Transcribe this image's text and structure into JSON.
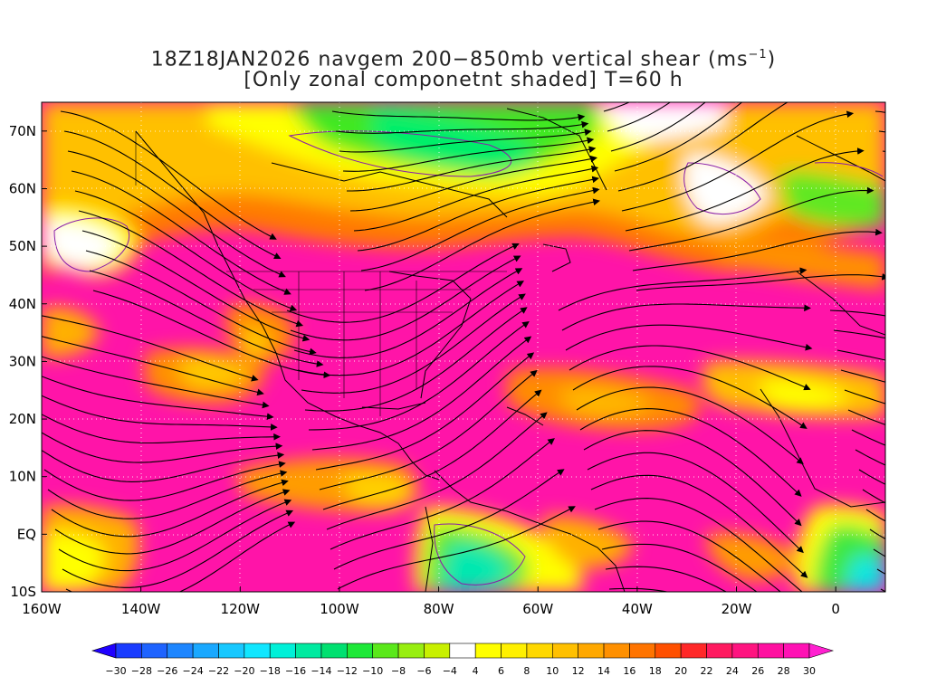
{
  "title": {
    "line1_prefix": "18Z18JAN2026 navgem 200−850mb vertical shear (ms",
    "line1_sup": "−1",
    "line1_suffix": ")",
    "line2": "[Only zonal componetnt shaded] T=60 h"
  },
  "axes": {
    "lat_labels": [
      "70N",
      "60N",
      "50N",
      "40N",
      "30N",
      "20N",
      "10N",
      "EQ",
      "10S"
    ],
    "lat_values": [
      70,
      60,
      50,
      40,
      30,
      20,
      10,
      0,
      -10
    ],
    "lon_labels": [
      "160W",
      "140W",
      "120W",
      "100W",
      "80W",
      "60W",
      "40W",
      "20W",
      "0"
    ],
    "lon_values": [
      -160,
      -140,
      -120,
      -100,
      -80,
      -60,
      -40,
      -20,
      0
    ],
    "lon_range": [
      -160,
      10
    ],
    "lat_range": [
      -10,
      75
    ],
    "grid": "dotted"
  },
  "colorbar": {
    "labels": [
      "−30",
      "−28",
      "−26",
      "−24",
      "−22",
      "−20",
      "−18",
      "−16",
      "−14",
      "−12",
      "−10",
      "−8",
      "−6",
      "−4",
      "4",
      "6",
      "8",
      "10",
      "12",
      "14",
      "16",
      "18",
      "20",
      "22",
      "24",
      "26",
      "28",
      "30"
    ],
    "colors": [
      "#1f00ff",
      "#1a3cff",
      "#1e63ff",
      "#1e86ff",
      "#19a8ff",
      "#17c8ff",
      "#10e6ff",
      "#00f0d8",
      "#00eaa0",
      "#00e070",
      "#1ee838",
      "#5ae81a",
      "#98ee10",
      "#c8f000",
      "#ffffff",
      "#ffff00",
      "#fff000",
      "#ffd800",
      "#ffc000",
      "#ffa800",
      "#ff9000",
      "#ff7400",
      "#ff5000",
      "#ff2828",
      "#ff1a60",
      "#ff1480",
      "#ff10a0",
      "#ff12b4",
      "#ff20d0"
    ]
  }
}
